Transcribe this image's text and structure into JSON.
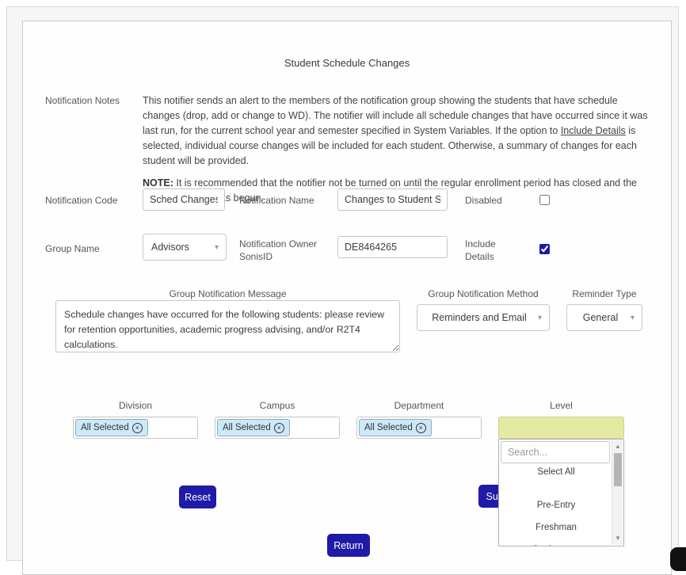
{
  "page": {
    "title": "Student Schedule Changes"
  },
  "notes": {
    "label": "Notification Notes",
    "p1_part1": "This notifier sends an alert to the members of the notification group showing the students that have schedule changes (drop, add or change to WD). The notifier will include all schedule changes that have occurred since it was last run, for the current school year and semester specified in System Variables. If the option to ",
    "p1_underlined": "Include Details",
    "p1_part2": " is selected, individual course changes will be included for each student. Otherwise, a summary of changes for each student will be provided.",
    "p2_bold": "NOTE:",
    "p2_text": " It is recommended that the notifier not be turned on until the regular enrollment period has closed and the drop/add period has begun."
  },
  "fields": {
    "notification_code": {
      "label": "Notification Code",
      "value": "Sched Changes"
    },
    "notification_name": {
      "label": "Notification Name",
      "value": "Changes to Student Sche"
    },
    "disabled": {
      "label": "Disabled"
    },
    "group_name": {
      "label": "Group Name",
      "value": "Advisors"
    },
    "owner_sonisid": {
      "label": "Notification Owner SonisID",
      "value": "DE8464265"
    },
    "include_details": {
      "label": "Include Details",
      "checked": "checked"
    },
    "message": {
      "label": "Group Notification Message",
      "value": "Schedule changes have occurred for the following students: please review for retention opportunities, academic progress advising, and/or R2T4 calculations."
    },
    "method": {
      "label": "Group Notification Method",
      "value": "Reminders and Email"
    },
    "reminder_type": {
      "label": "Reminder Type",
      "value": "General"
    }
  },
  "filters": {
    "division": {
      "label": "Division",
      "chip": "All Selected"
    },
    "campus": {
      "label": "Campus",
      "chip": "All Selected"
    },
    "department": {
      "label": "Department",
      "chip": "All Selected"
    },
    "level": {
      "label": "Level"
    }
  },
  "level_dropdown": {
    "search_placeholder": "Search...",
    "options": [
      "Select All",
      "Pre-Entry",
      "Freshman",
      "Sophomore"
    ]
  },
  "buttons": {
    "reset": "Reset",
    "submit": "Submit",
    "return": "Return"
  },
  "icons": {
    "chevron_down": "▾",
    "chip_remove": "×",
    "scroll_up": "▲",
    "scroll_down": "▼"
  },
  "colors": {
    "accent": "#1f1aa8",
    "level_highlight": "#e4eba1",
    "chip_bg": "#cce9f9",
    "search_focus_border": "#74aadd"
  }
}
